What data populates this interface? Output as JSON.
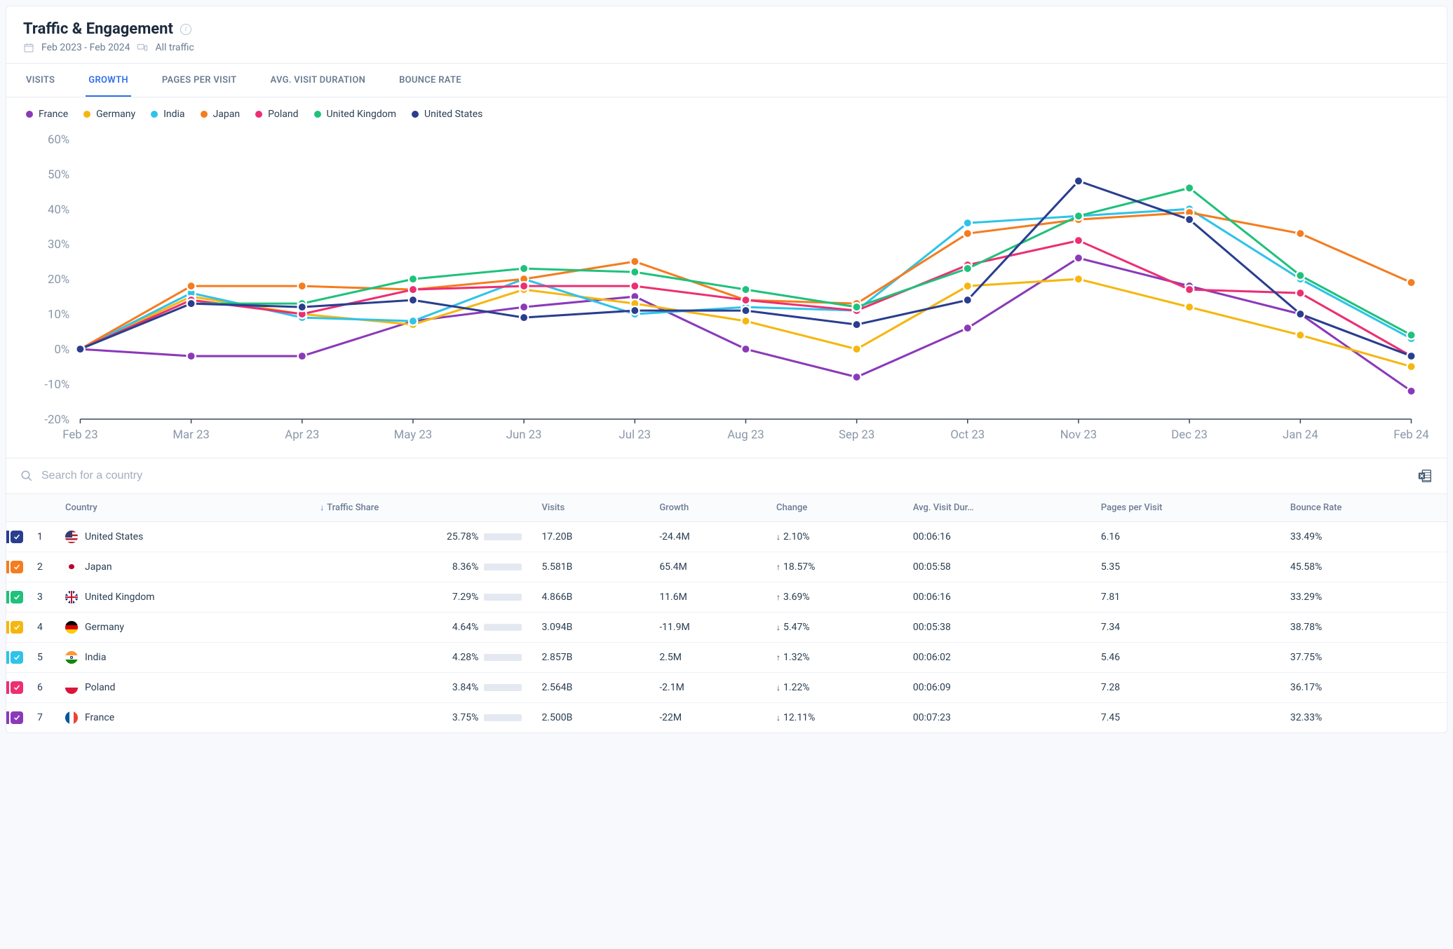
{
  "header": {
    "title": "Traffic & Engagement",
    "date_range": "Feb 2023 - Feb 2024",
    "filter_label": "All traffic"
  },
  "tabs": [
    {
      "label": "VISITS"
    },
    {
      "label": "GROWTH"
    },
    {
      "label": "PAGES PER VISIT"
    },
    {
      "label": "AVG. VISIT DURATION"
    },
    {
      "label": "BOUNCE RATE"
    }
  ],
  "active_tab_index": 1,
  "legend": [
    {
      "name": "France",
      "color": "#8a3ab9"
    },
    {
      "name": "Germany",
      "color": "#f5b70f"
    },
    {
      "name": "India",
      "color": "#2fc3e8"
    },
    {
      "name": "Japan",
      "color": "#f57c1f"
    },
    {
      "name": "Poland",
      "color": "#ec2f72"
    },
    {
      "name": "United Kingdom",
      "color": "#1fc17b"
    },
    {
      "name": "United States",
      "color": "#2a3e8f"
    }
  ],
  "chart": {
    "type": "line",
    "background_color": "#ffffff",
    "grid_color": "#eef1f6",
    "axis_color": "#3a4a5e",
    "label_color": "#8a97a9",
    "label_fontsize": 11,
    "x_categories": [
      "Feb 23",
      "Mar 23",
      "Apr 23",
      "May 23",
      "Jun 23",
      "Jul 23",
      "Aug 23",
      "Sep 23",
      "Oct 23",
      "Nov 23",
      "Dec 23",
      "Jan 24",
      "Feb 24"
    ],
    "y_ticks": [
      -20,
      -10,
      0,
      10,
      20,
      30,
      40,
      50,
      60
    ],
    "y_tick_labels": [
      "-20%",
      "-10%",
      "0%",
      "10%",
      "20%",
      "30%",
      "40%",
      "50%",
      "60%"
    ],
    "ylim": [
      -20,
      60
    ],
    "line_width": 2,
    "marker_radius": 4,
    "series": [
      {
        "name": "France",
        "color": "#8a3ab9",
        "values": [
          0,
          -2,
          -2,
          8,
          12,
          15,
          0,
          -8,
          6,
          26,
          18,
          10,
          -12
        ]
      },
      {
        "name": "Germany",
        "color": "#f5b70f",
        "values": [
          0,
          15,
          10,
          7,
          17,
          13,
          8,
          0,
          18,
          20,
          12,
          4,
          -5
        ]
      },
      {
        "name": "India",
        "color": "#2fc3e8",
        "values": [
          0,
          16,
          9,
          8,
          20,
          10,
          12,
          11,
          36,
          38,
          40,
          20,
          3
        ]
      },
      {
        "name": "Japan",
        "color": "#f57c1f",
        "values": [
          0,
          18,
          18,
          17,
          20,
          25,
          14,
          13,
          33,
          37,
          39,
          33,
          19
        ]
      },
      {
        "name": "Poland",
        "color": "#ec2f72",
        "values": [
          0,
          14,
          10,
          17,
          18,
          18,
          14,
          11,
          24,
          31,
          17,
          16,
          -2
        ]
      },
      {
        "name": "United Kingdom",
        "color": "#1fc17b",
        "values": [
          0,
          13,
          13,
          20,
          23,
          22,
          17,
          12,
          23,
          38,
          46,
          21,
          4
        ]
      },
      {
        "name": "United States",
        "color": "#2a3e8f",
        "values": [
          0,
          13,
          12,
          14,
          9,
          11,
          11,
          7,
          14,
          48,
          37,
          10,
          -2
        ]
      }
    ]
  },
  "search": {
    "placeholder": "Search for a country"
  },
  "table": {
    "sort_column": "Traffic Share",
    "sort_dir": "desc",
    "columns": [
      "Country",
      "Traffic Share",
      "Visits",
      "Growth",
      "Change",
      "Avg. Visit Dur…",
      "Pages per Visit",
      "Bounce Rate"
    ],
    "max_share_bar": 30,
    "rows": [
      {
        "rank": 1,
        "country": "United States",
        "flag": "us",
        "accent": "#2a3e8f",
        "share": "25.78%",
        "share_val": 25.78,
        "visits": "17.20B",
        "growth": "-24.4M",
        "change": "2.10%",
        "change_dir": "down",
        "duration": "00:06:16",
        "ppv": "6.16",
        "bounce": "33.49%"
      },
      {
        "rank": 2,
        "country": "Japan",
        "flag": "jp",
        "accent": "#f57c1f",
        "share": "8.36%",
        "share_val": 8.36,
        "visits": "5.581B",
        "growth": "65.4M",
        "change": "18.57%",
        "change_dir": "up",
        "duration": "00:05:58",
        "ppv": "5.35",
        "bounce": "45.58%"
      },
      {
        "rank": 3,
        "country": "United Kingdom",
        "flag": "uk",
        "accent": "#1fc17b",
        "share": "7.29%",
        "share_val": 7.29,
        "visits": "4.866B",
        "growth": "11.6M",
        "change": "3.69%",
        "change_dir": "up",
        "duration": "00:06:16",
        "ppv": "7.81",
        "bounce": "33.29%"
      },
      {
        "rank": 4,
        "country": "Germany",
        "flag": "de",
        "accent": "#f5b70f",
        "share": "4.64%",
        "share_val": 4.64,
        "visits": "3.094B",
        "growth": "-11.9M",
        "change": "5.47%",
        "change_dir": "down",
        "duration": "00:05:38",
        "ppv": "7.34",
        "bounce": "38.78%"
      },
      {
        "rank": 5,
        "country": "India",
        "flag": "in",
        "accent": "#2fc3e8",
        "share": "4.28%",
        "share_val": 4.28,
        "visits": "2.857B",
        "growth": "2.5M",
        "change": "1.32%",
        "change_dir": "up",
        "duration": "00:06:02",
        "ppv": "5.46",
        "bounce": "37.75%"
      },
      {
        "rank": 6,
        "country": "Poland",
        "flag": "pl",
        "accent": "#ec2f72",
        "share": "3.84%",
        "share_val": 3.84,
        "visits": "2.564B",
        "growth": "-2.1M",
        "change": "1.22%",
        "change_dir": "down",
        "duration": "00:06:09",
        "ppv": "7.28",
        "bounce": "36.17%"
      },
      {
        "rank": 7,
        "country": "France",
        "flag": "fr",
        "accent": "#8a3ab9",
        "share": "3.75%",
        "share_val": 3.75,
        "visits": "2.500B",
        "growth": "-22M",
        "change": "12.11%",
        "change_dir": "down",
        "duration": "00:07:23",
        "ppv": "7.45",
        "bounce": "32.33%"
      }
    ]
  }
}
